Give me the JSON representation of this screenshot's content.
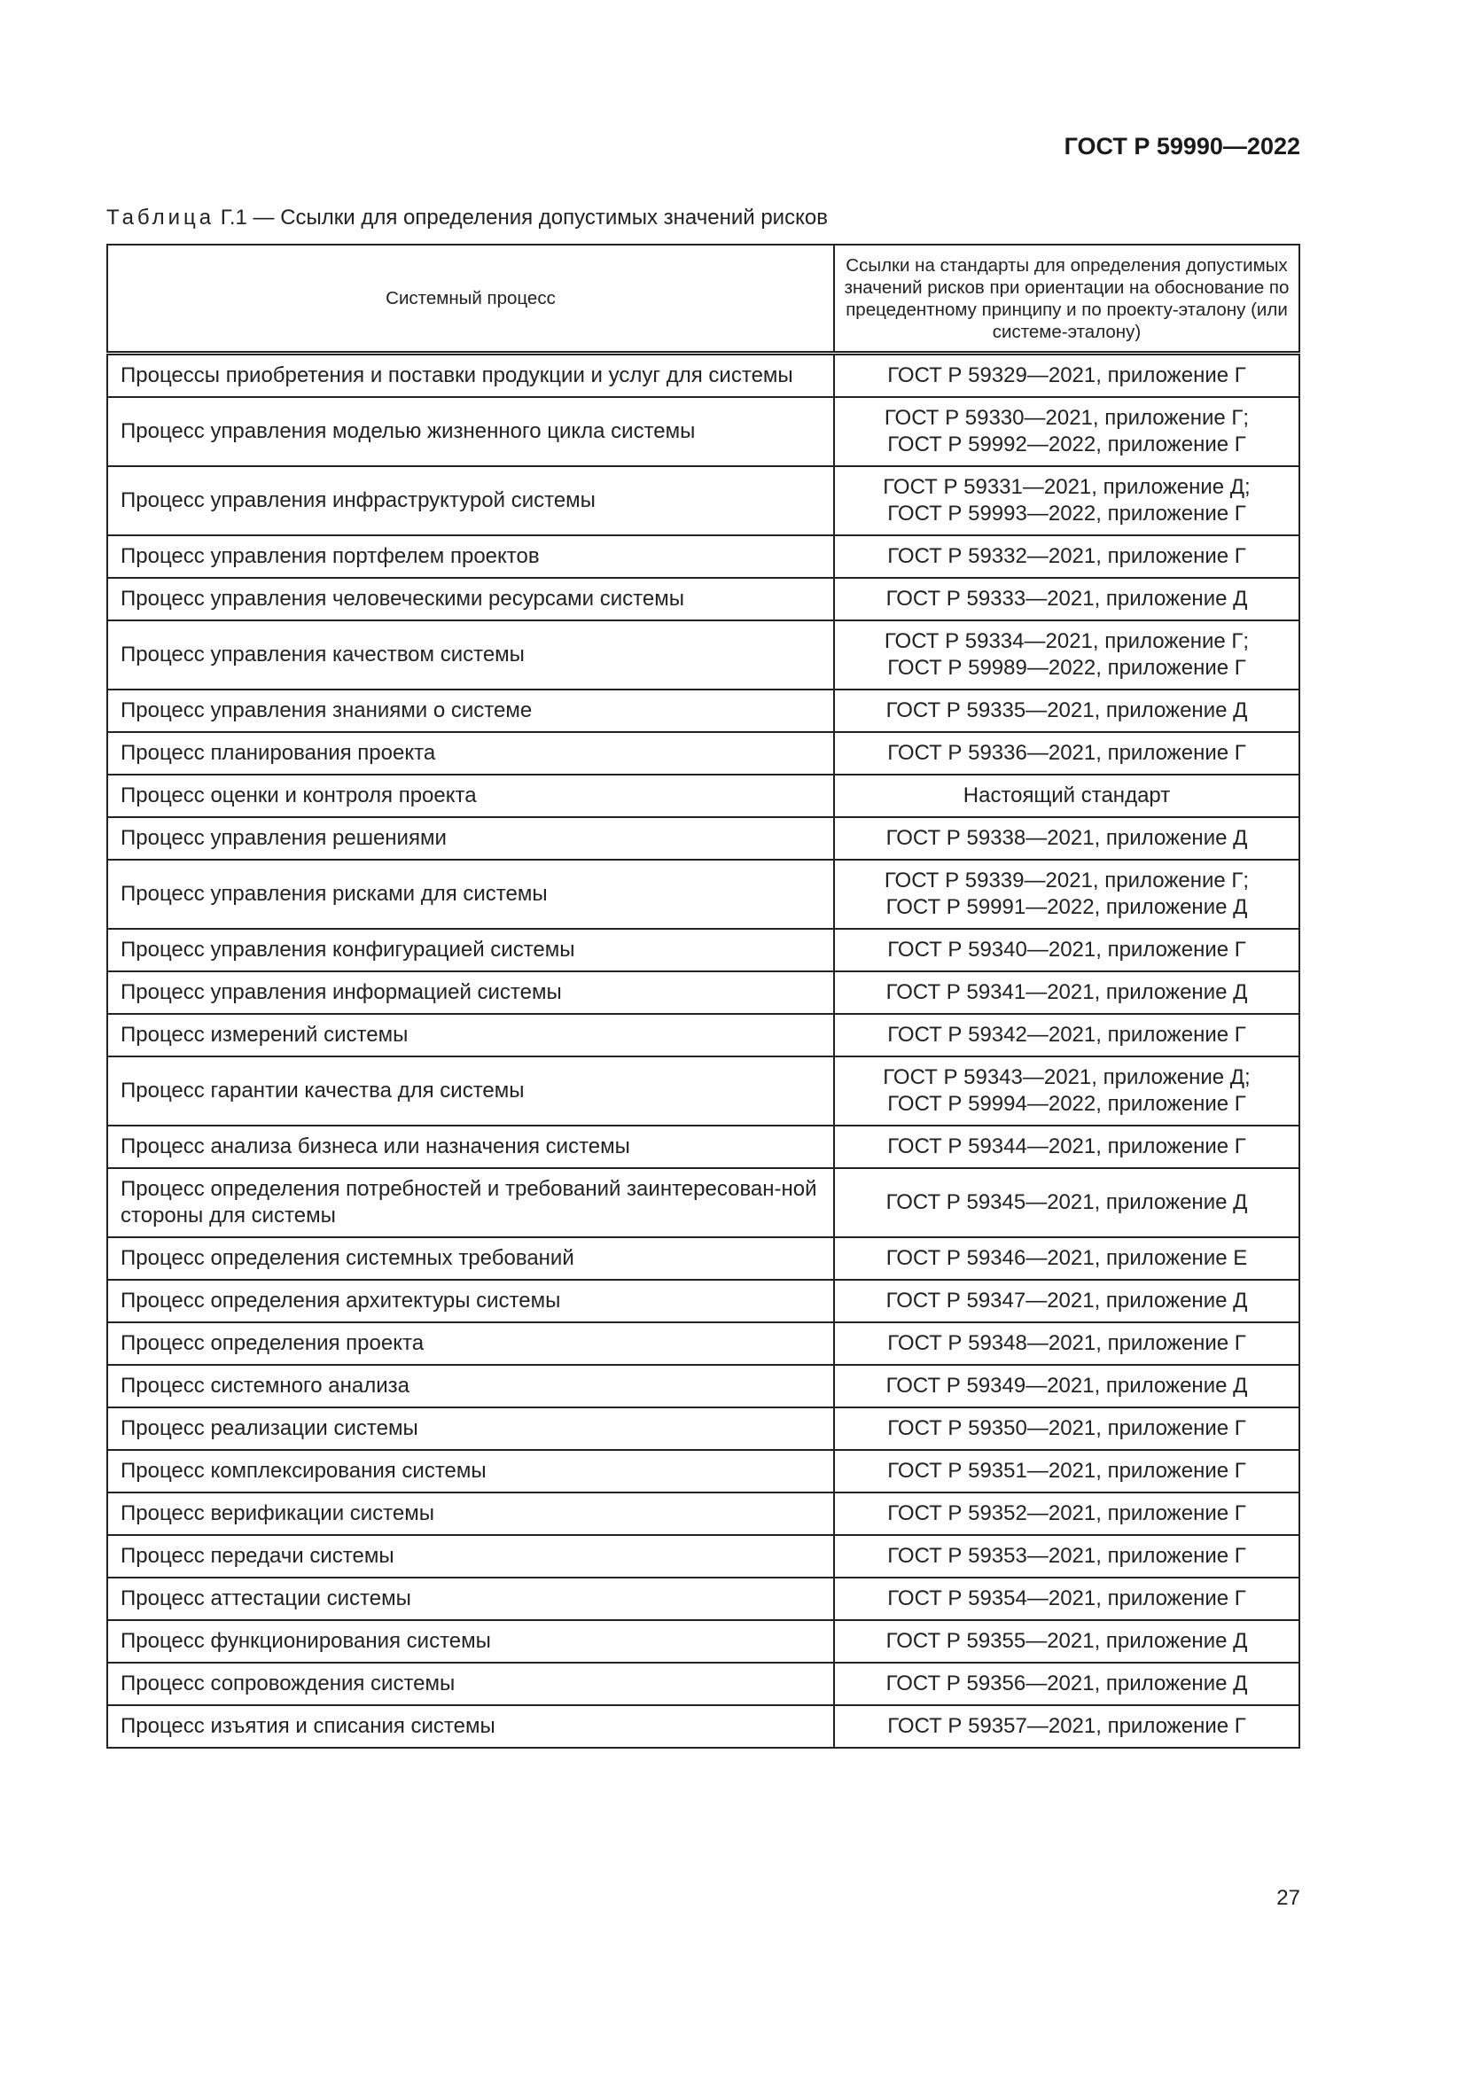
{
  "header": {
    "doc_code": "ГОСТ Р 59990—2022"
  },
  "caption": {
    "label": "Таблица",
    "text": "Г.1 — Ссылки для определения допустимых значений рисков"
  },
  "table": {
    "columns": [
      "Системный процесс",
      "Ссылки на стандарты для определения допустимых значений рисков при ориентации на обоснование по прецедентному принципу и по проекту-эталону (или системе-эталону)"
    ],
    "rows": [
      {
        "process": "Процессы приобретения и поставки продукции и услуг для системы",
        "refs": [
          "ГОСТ Р 59329—2021, приложение Г"
        ]
      },
      {
        "process": "Процесс управления моделью жизненного цикла системы",
        "refs": [
          "ГОСТ Р 59330—2021, приложение Г;",
          "ГОСТ Р 59992—2022, приложение Г"
        ]
      },
      {
        "process": "Процесс управления инфраструктурой системы",
        "refs": [
          "ГОСТ Р 59331—2021, приложение Д;",
          "ГОСТ Р 59993—2022, приложение Г"
        ]
      },
      {
        "process": "Процесс управления портфелем проектов",
        "refs": [
          "ГОСТ Р 59332—2021, приложение Г"
        ]
      },
      {
        "process": "Процесс управления человеческими ресурсами системы",
        "refs": [
          "ГОСТ Р 59333—2021, приложение Д"
        ]
      },
      {
        "process": "Процесс управления качеством системы",
        "refs": [
          "ГОСТ Р 59334—2021, приложение Г;",
          "ГОСТ Р 59989—2022, приложение Г"
        ]
      },
      {
        "process": "Процесс управления знаниями о системе",
        "refs": [
          "ГОСТ Р 59335—2021, приложение Д"
        ]
      },
      {
        "process": "Процесс планирования проекта",
        "refs": [
          "ГОСТ Р 59336—2021, приложение Г"
        ]
      },
      {
        "process": "Процесс оценки и контроля проекта",
        "refs": [
          "Настоящий стандарт"
        ]
      },
      {
        "process": "Процесс управления решениями",
        "refs": [
          "ГОСТ Р 59338—2021, приложение Д"
        ]
      },
      {
        "process": "Процесс управления рисками для системы",
        "refs": [
          "ГОСТ Р 59339—2021, приложение Г;",
          "ГОСТ Р 59991—2022, приложение Д"
        ]
      },
      {
        "process": "Процесс управления конфигурацией системы",
        "refs": [
          "ГОСТ Р 59340—2021, приложение Г"
        ]
      },
      {
        "process": "Процесс управления информацией системы",
        "refs": [
          "ГОСТ Р 59341—2021, приложение Д"
        ]
      },
      {
        "process": "Процесс измерений системы",
        "refs": [
          "ГОСТ Р 59342—2021, приложение Г"
        ]
      },
      {
        "process": "Процесс гарантии качества для системы",
        "refs": [
          "ГОСТ Р 59343—2021, приложение Д;",
          "ГОСТ Р 59994—2022, приложение Г"
        ]
      },
      {
        "process": "Процесс анализа бизнеса или назначения системы",
        "refs": [
          "ГОСТ Р 59344—2021, приложение Г"
        ]
      },
      {
        "process": "Процесс определения потребностей и требований заинтересован-ной стороны для системы",
        "refs": [
          "ГОСТ Р 59345—2021, приложение Д"
        ],
        "double": true
      },
      {
        "process": "Процесс определения системных требований",
        "refs": [
          "ГОСТ Р 59346—2021, приложение Е"
        ]
      },
      {
        "process": "Процесс определения архитектуры системы",
        "refs": [
          "ГОСТ Р 59347—2021, приложение Д"
        ]
      },
      {
        "process": "Процесс определения проекта",
        "refs": [
          "ГОСТ Р 59348—2021, приложение Г"
        ]
      },
      {
        "process": "Процесс системного анализа",
        "refs": [
          "ГОСТ Р 59349—2021, приложение Д"
        ]
      },
      {
        "process": "Процесс реализации системы",
        "refs": [
          "ГОСТ Р 59350—2021, приложение Г"
        ]
      },
      {
        "process": "Процесс комплексирования системы",
        "refs": [
          "ГОСТ Р 59351—2021, приложение Г"
        ]
      },
      {
        "process": "Процесс верификации системы",
        "refs": [
          "ГОСТ Р 59352—2021, приложение Г"
        ]
      },
      {
        "process": "Процесс передачи системы",
        "refs": [
          "ГОСТ Р 59353—2021, приложение Г"
        ]
      },
      {
        "process": "Процесс аттестации системы",
        "refs": [
          "ГОСТ Р 59354—2021, приложение Г"
        ]
      },
      {
        "process": "Процесс функционирования системы",
        "refs": [
          "ГОСТ Р 59355—2021, приложение Д"
        ]
      },
      {
        "process": "Процесс сопровождения системы",
        "refs": [
          "ГОСТ Р 59356—2021, приложение Д"
        ]
      },
      {
        "process": "Процесс изъятия и списания системы",
        "refs": [
          "ГОСТ Р 59357—2021, приложение Г"
        ]
      }
    ]
  },
  "footer": {
    "page_number": "27"
  }
}
